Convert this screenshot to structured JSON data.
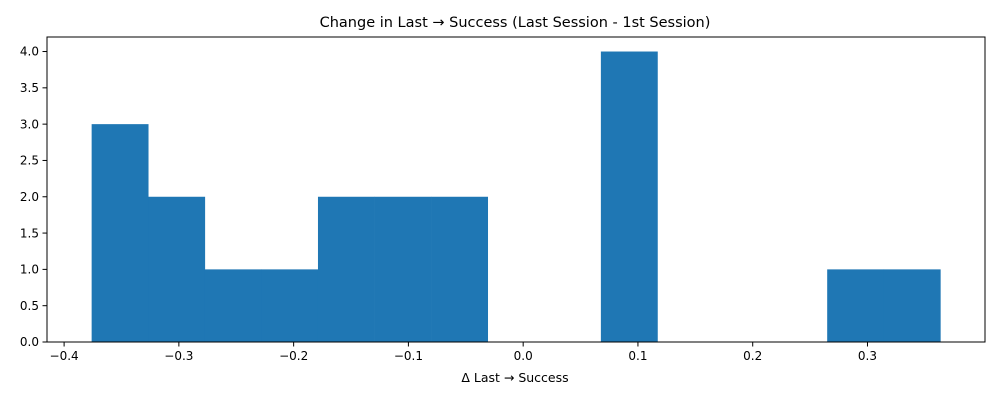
{
  "chart_data": {
    "type": "bar",
    "title": "Change in Last → Success (Last Session - 1st Session)",
    "xlabel": "Δ Last → Success",
    "ylabel": "",
    "bin_edges": [
      -0.376,
      -0.3267,
      -0.2774,
      -0.2281,
      -0.1788,
      -0.1295,
      -0.0802,
      -0.0309,
      0.0184,
      0.0677,
      0.117,
      0.1663,
      0.2156,
      0.2649,
      0.3142,
      0.3635
    ],
    "values": [
      3,
      2,
      1,
      1,
      2,
      2,
      2,
      0,
      0,
      4,
      0,
      0,
      0,
      1,
      1
    ],
    "xlim": [
      -0.4149,
      0.4024
    ],
    "ylim": [
      0,
      4.2
    ],
    "xticks": [
      -0.4,
      -0.3,
      -0.2,
      -0.1,
      0.0,
      0.1,
      0.2,
      0.3
    ],
    "xtick_labels": [
      "−0.4",
      "−0.3",
      "−0.2",
      "−0.1",
      "0.0",
      "0.1",
      "0.2",
      "0.3"
    ],
    "yticks": [
      0,
      0.5,
      1,
      1.5,
      2,
      2.5,
      3,
      3.5,
      4
    ],
    "ytick_labels": [
      "0.0",
      "0.5",
      "1.0",
      "1.5",
      "2.0",
      "2.5",
      "3.0",
      "3.5",
      "4.0"
    ],
    "bar_color": "#1f77b4",
    "grid": false,
    "legend": "none"
  }
}
